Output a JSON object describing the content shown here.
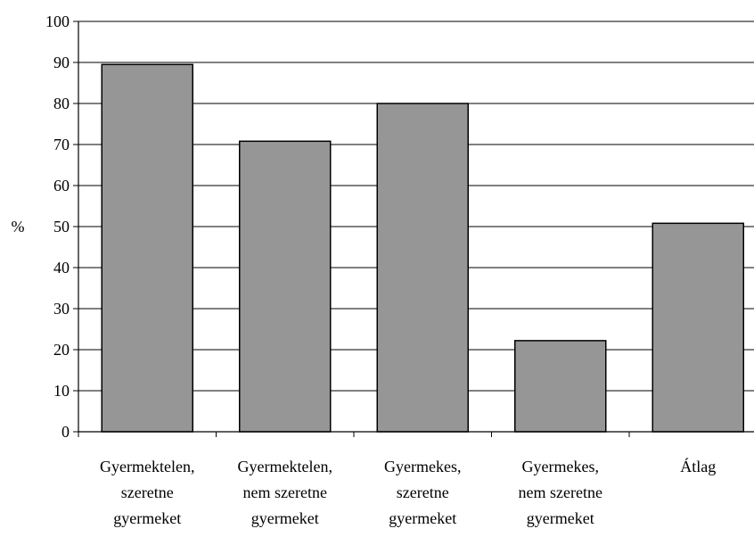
{
  "chart_data": {
    "type": "bar",
    "title": "",
    "xlabel": "",
    "ylabel": "%",
    "ylim": [
      0,
      100
    ],
    "yticks": [
      0,
      10,
      20,
      30,
      40,
      50,
      60,
      70,
      80,
      90,
      100
    ],
    "grid": true,
    "legend": "none",
    "categories": [
      [
        "Gyermektelen,",
        "szeretne",
        "gyermeket"
      ],
      [
        "Gyermektelen,",
        "nem szeretne",
        "gyermeket"
      ],
      [
        "Gyermekes,",
        "szeretne",
        "gyermeket"
      ],
      [
        "Gyermekes,",
        "nem szeretne",
        "gyermeket"
      ],
      [
        "Átlag"
      ]
    ],
    "values": [
      89.5,
      70.8,
      80.0,
      22.2,
      50.8
    ],
    "colors": {
      "bar": "#969696",
      "bar_edge": "#000000",
      "grid": "#000000",
      "axis": "#000000"
    }
  }
}
